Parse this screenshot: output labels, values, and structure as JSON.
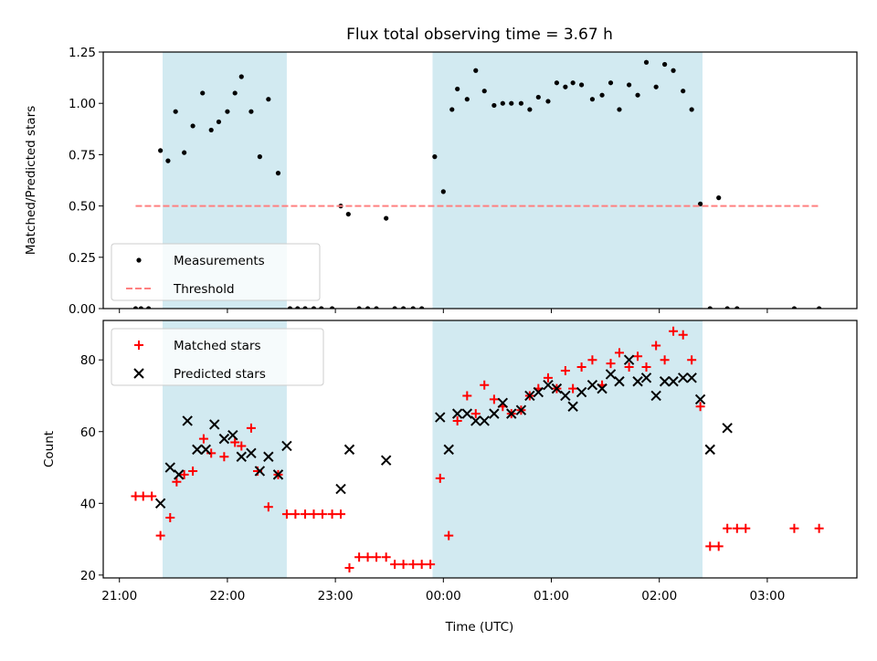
{
  "chart_data": {
    "type": "scatter",
    "title": "Flux total observing time = 3.67 h",
    "xlabel": "Time (UTC)",
    "x_unit": "hours (UTC clock)",
    "xlim": [
      20.85,
      27.83
    ],
    "x_ticks": [
      {
        "value": 21,
        "label": "21:00"
      },
      {
        "value": 22,
        "label": "22:00"
      },
      {
        "value": 23,
        "label": "23:00"
      },
      {
        "value": 24,
        "label": "00:00"
      },
      {
        "value": 25,
        "label": "01:00"
      },
      {
        "value": 26,
        "label": "02:00"
      },
      {
        "value": 27,
        "label": "03:00"
      }
    ],
    "shaded_intervals": [
      [
        21.4,
        22.55
      ],
      [
        23.9,
        26.4
      ]
    ],
    "shade_color": "#add8e6",
    "panels": [
      {
        "id": "ratio",
        "ylabel": "Matched/Predicted stars",
        "ylim": [
          0,
          1.25
        ],
        "y_ticks": [
          "0.00",
          "0.25",
          "0.50",
          "0.75",
          "1.00",
          "1.25"
        ],
        "legend_position": "lower-left",
        "series": [
          {
            "name": "Measurements",
            "marker": "dot",
            "color": "#000000",
            "points": [
              [
                21.15,
                0.0
              ],
              [
                21.2,
                0.0
              ],
              [
                21.27,
                0.0
              ],
              [
                21.38,
                0.77
              ],
              [
                21.45,
                0.72
              ],
              [
                21.52,
                0.96
              ],
              [
                21.6,
                0.76
              ],
              [
                21.68,
                0.89
              ],
              [
                21.77,
                1.05
              ],
              [
                21.85,
                0.87
              ],
              [
                21.92,
                0.91
              ],
              [
                22.0,
                0.96
              ],
              [
                22.07,
                1.05
              ],
              [
                22.13,
                1.13
              ],
              [
                22.22,
                0.96
              ],
              [
                22.3,
                0.74
              ],
              [
                22.38,
                1.02
              ],
              [
                22.47,
                0.66
              ],
              [
                22.58,
                0.0
              ],
              [
                22.65,
                0.0
              ],
              [
                22.72,
                0.0
              ],
              [
                22.8,
                0.0
              ],
              [
                22.87,
                0.0
              ],
              [
                22.97,
                0.0
              ],
              [
                23.05,
                0.5
              ],
              [
                23.12,
                0.46
              ],
              [
                23.22,
                0.0
              ],
              [
                23.3,
                0.0
              ],
              [
                23.38,
                0.0
              ],
              [
                23.47,
                0.44
              ],
              [
                23.55,
                0.0
              ],
              [
                23.63,
                0.0
              ],
              [
                23.72,
                0.0
              ],
              [
                23.8,
                0.0
              ],
              [
                23.92,
                0.74
              ],
              [
                24.0,
                0.57
              ],
              [
                24.08,
                0.97
              ],
              [
                24.13,
                1.07
              ],
              [
                24.22,
                1.02
              ],
              [
                24.3,
                1.16
              ],
              [
                24.38,
                1.06
              ],
              [
                24.47,
                0.99
              ],
              [
                24.55,
                1.0
              ],
              [
                24.63,
                1.0
              ],
              [
                24.72,
                1.0
              ],
              [
                24.8,
                0.97
              ],
              [
                24.88,
                1.03
              ],
              [
                24.97,
                1.01
              ],
              [
                25.05,
                1.1
              ],
              [
                25.13,
                1.08
              ],
              [
                25.2,
                1.1
              ],
              [
                25.28,
                1.09
              ],
              [
                25.38,
                1.02
              ],
              [
                25.47,
                1.04
              ],
              [
                25.55,
                1.1
              ],
              [
                25.63,
                0.97
              ],
              [
                25.72,
                1.09
              ],
              [
                25.8,
                1.04
              ],
              [
                25.88,
                1.2
              ],
              [
                25.97,
                1.08
              ],
              [
                26.05,
                1.19
              ],
              [
                26.13,
                1.16
              ],
              [
                26.22,
                1.06
              ],
              [
                26.3,
                0.97
              ],
              [
                26.38,
                0.51
              ],
              [
                26.47,
                0.0
              ],
              [
                26.55,
                0.54
              ],
              [
                26.63,
                0.0
              ],
              [
                26.72,
                0.0
              ],
              [
                27.25,
                0.0
              ],
              [
                27.48,
                0.0
              ]
            ]
          },
          {
            "name": "Threshold",
            "marker": "dashed-line",
            "color": "#ff8080",
            "line_x": [
              21.15,
              27.48
            ],
            "line_y": 0.5
          }
        ]
      },
      {
        "id": "counts",
        "ylabel": "Count",
        "ylim": [
          19.2,
          91
        ],
        "y_ticks": [
          "20",
          "40",
          "60",
          "80"
        ],
        "legend_position": "upper-left",
        "series": [
          {
            "name": "Matched stars",
            "marker": "plus",
            "color": "#ff0000",
            "points": [
              [
                21.15,
                42
              ],
              [
                21.22,
                42
              ],
              [
                21.3,
                42
              ],
              [
                21.38,
                31
              ],
              [
                21.47,
                36
              ],
              [
                21.53,
                46
              ],
              [
                21.6,
                48
              ],
              [
                21.68,
                49
              ],
              [
                21.78,
                58
              ],
              [
                21.85,
                54
              ],
              [
                21.97,
                53
              ],
              [
                22.07,
                57
              ],
              [
                22.13,
                56
              ],
              [
                22.22,
                61
              ],
              [
                22.28,
                49
              ],
              [
                22.38,
                39
              ],
              [
                22.47,
                48
              ],
              [
                22.55,
                37
              ],
              [
                22.63,
                37
              ],
              [
                22.72,
                37
              ],
              [
                22.8,
                37
              ],
              [
                22.88,
                37
              ],
              [
                22.97,
                37
              ],
              [
                23.05,
                37
              ],
              [
                23.13,
                22
              ],
              [
                23.22,
                25
              ],
              [
                23.3,
                25
              ],
              [
                23.38,
                25
              ],
              [
                23.47,
                25
              ],
              [
                23.55,
                23
              ],
              [
                23.63,
                23
              ],
              [
                23.72,
                23
              ],
              [
                23.8,
                23
              ],
              [
                23.88,
                23
              ],
              [
                23.97,
                47
              ],
              [
                24.05,
                31
              ],
              [
                24.13,
                63
              ],
              [
                24.22,
                70
              ],
              [
                24.3,
                65
              ],
              [
                24.38,
                73
              ],
              [
                24.47,
                69
              ],
              [
                24.55,
                67
              ],
              [
                24.63,
                65
              ],
              [
                24.72,
                66
              ],
              [
                24.8,
                70
              ],
              [
                24.88,
                72
              ],
              [
                24.97,
                75
              ],
              [
                25.05,
                72
              ],
              [
                25.13,
                77
              ],
              [
                25.2,
                72
              ],
              [
                25.28,
                78
              ],
              [
                25.38,
                80
              ],
              [
                25.47,
                73
              ],
              [
                25.55,
                79
              ],
              [
                25.63,
                82
              ],
              [
                25.72,
                78
              ],
              [
                25.8,
                81
              ],
              [
                25.88,
                78
              ],
              [
                25.97,
                84
              ],
              [
                26.05,
                80
              ],
              [
                26.13,
                88
              ],
              [
                26.22,
                87
              ],
              [
                26.3,
                80
              ],
              [
                26.38,
                67
              ],
              [
                26.47,
                28
              ],
              [
                26.55,
                28
              ],
              [
                26.63,
                33
              ],
              [
                26.72,
                33
              ],
              [
                26.8,
                33
              ],
              [
                27.25,
                33
              ],
              [
                27.48,
                33
              ]
            ]
          },
          {
            "name": "Predicted stars",
            "marker": "x",
            "color": "#000000",
            "points": [
              [
                21.38,
                40
              ],
              [
                21.47,
                50
              ],
              [
                21.55,
                48
              ],
              [
                21.63,
                63
              ],
              [
                21.72,
                55
              ],
              [
                21.8,
                55
              ],
              [
                21.88,
                62
              ],
              [
                21.97,
                58
              ],
              [
                22.05,
                59
              ],
              [
                22.13,
                53
              ],
              [
                22.22,
                54
              ],
              [
                22.3,
                49
              ],
              [
                22.38,
                53
              ],
              [
                22.47,
                48
              ],
              [
                22.55,
                56
              ],
              [
                23.05,
                44
              ],
              [
                23.13,
                55
              ],
              [
                23.47,
                52
              ],
              [
                23.97,
                64
              ],
              [
                24.05,
                55
              ],
              [
                24.13,
                65
              ],
              [
                24.22,
                65
              ],
              [
                24.3,
                63
              ],
              [
                24.38,
                63
              ],
              [
                24.47,
                65
              ],
              [
                24.55,
                68
              ],
              [
                24.63,
                65
              ],
              [
                24.72,
                66
              ],
              [
                24.8,
                70
              ],
              [
                24.88,
                71
              ],
              [
                24.97,
                73
              ],
              [
                25.05,
                72
              ],
              [
                25.13,
                70
              ],
              [
                25.2,
                67
              ],
              [
                25.28,
                71
              ],
              [
                25.38,
                73
              ],
              [
                25.47,
                72
              ],
              [
                25.55,
                76
              ],
              [
                25.63,
                74
              ],
              [
                25.72,
                80
              ],
              [
                25.8,
                74
              ],
              [
                25.88,
                75
              ],
              [
                25.97,
                70
              ],
              [
                26.05,
                74
              ],
              [
                26.13,
                74
              ],
              [
                26.22,
                75
              ],
              [
                26.3,
                75
              ],
              [
                26.38,
                69
              ],
              [
                26.47,
                55
              ],
              [
                26.63,
                61
              ]
            ]
          }
        ]
      }
    ]
  }
}
